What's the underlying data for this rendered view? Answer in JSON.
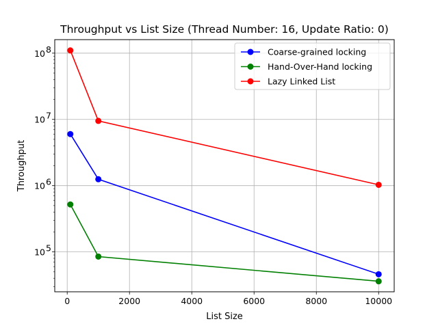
{
  "chart_data": {
    "type": "line",
    "title": "Throughput vs List Size (Thread Number: 16, Update Ratio: 0)",
    "xlabel": "List Size",
    "ylabel": "Throughput",
    "x": [
      100,
      1000,
      10000
    ],
    "xlim": [
      -400,
      10500
    ],
    "ylim": [
      25000,
      160000000
    ],
    "yscale": "log",
    "grid": true,
    "legend_position": "top-right",
    "x_ticks": [
      0,
      2000,
      4000,
      6000,
      8000,
      10000
    ],
    "x_tick_labels": [
      "0",
      "2000",
      "4000",
      "6000",
      "8000",
      "10000"
    ],
    "y_ticks": [
      100000,
      1000000,
      10000000,
      100000000
    ],
    "y_tick_bases": [
      "10",
      "10",
      "10",
      "10"
    ],
    "y_tick_exponents": [
      "5",
      "6",
      "7",
      "8"
    ],
    "series": [
      {
        "name": "Coarse-grained locking",
        "color": "#0000ff",
        "values": [
          6000000,
          1250000,
          46000
        ]
      },
      {
        "name": "Hand-Over-Hand locking",
        "color": "#008000",
        "values": [
          520000,
          85000,
          36000
        ]
      },
      {
        "name": "Lazy Linked List",
        "color": "#ff0000",
        "values": [
          110000000,
          9500000,
          1030000
        ]
      }
    ]
  }
}
